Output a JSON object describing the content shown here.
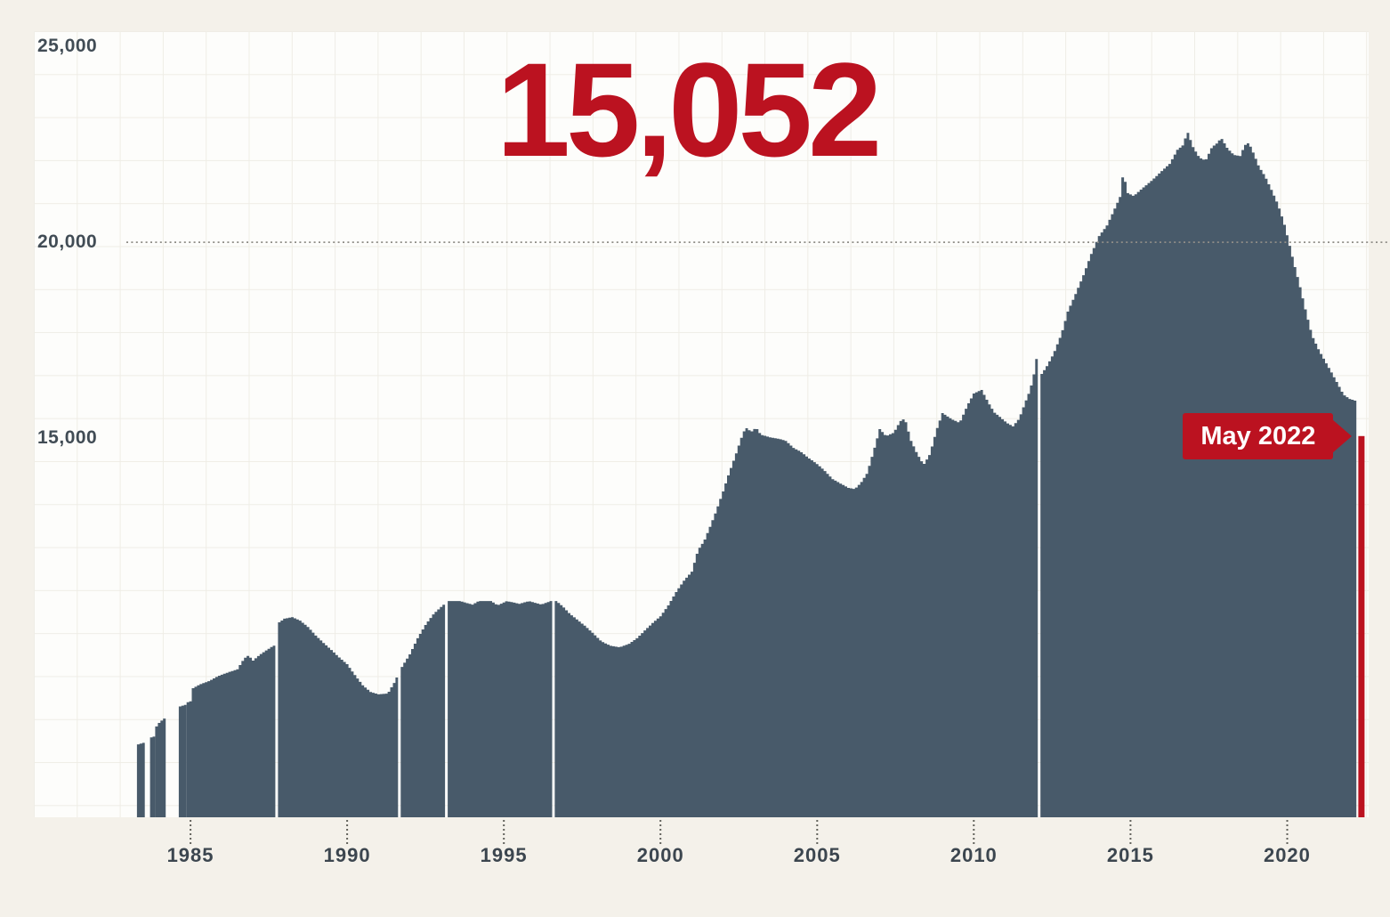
{
  "chart_data": {
    "type": "bar",
    "headline_value": "15,052",
    "title": "",
    "xlabel": "",
    "ylabel": "",
    "grid": true,
    "xlim": [
      1980.0,
      2022.6
    ],
    "ylim": [
      5320,
      25390
    ],
    "y_ticks": [
      {
        "value": 25000,
        "label": "25,000"
      },
      {
        "value": 20000,
        "label": "20,000"
      },
      {
        "value": 15000,
        "label": "15,000"
      }
    ],
    "x_ticks": [
      {
        "year": 1985,
        "label": "1985"
      },
      {
        "year": 1990,
        "label": "1990"
      },
      {
        "year": 1995,
        "label": "1995"
      },
      {
        "year": 2000,
        "label": "2000"
      },
      {
        "year": 2005,
        "label": "2005"
      },
      {
        "year": 2010,
        "label": "2010"
      },
      {
        "year": 2015,
        "label": "2015"
      },
      {
        "year": 2020,
        "label": "2020"
      }
    ],
    "threshold_line": {
      "value": 20000
    },
    "highlight": {
      "x": 2022.37,
      "value": 15052,
      "label": "May 2022"
    },
    "colors": {
      "bar": "#485a6a",
      "red": "#bb1220",
      "background": "#f4f1ea",
      "plot_background": "#fdfdfb",
      "grid": "#efede6",
      "threshold": "#8f8d87",
      "tick_dots": "#63635d"
    },
    "series": [
      {
        "name": "monthly-values",
        "segments": [
          [
            [
              1983.33,
              7180
            ],
            [
              1983.5,
              7220
            ]
          ],
          [
            [
              1983.72,
              7350
            ],
            [
              1983.82,
              7380
            ]
          ],
          [
            [
              1983.9,
              7620
            ],
            [
              1984.0,
              7730
            ],
            [
              1984.1,
              7800
            ],
            [
              1984.2,
              7860
            ]
          ],
          [
            [
              1984.7,
              8150
            ],
            [
              1984.8,
              8190
            ]
          ],
          [
            [
              1984.88,
              8240
            ],
            [
              1984.97,
              8280
            ]
          ],
          [
            [
              1985.05,
              8600
            ],
            [
              1985.3,
              8710
            ],
            [
              1985.6,
              8800
            ],
            [
              1985.9,
              8930
            ],
            [
              1986.2,
              9020
            ],
            [
              1986.5,
              9100
            ],
            [
              1986.72,
              9380
            ],
            [
              1986.85,
              9450
            ],
            [
              1987.0,
              9320
            ],
            [
              1987.2,
              9460
            ],
            [
              1987.4,
              9570
            ],
            [
              1987.65,
              9700
            ]
          ],
          [
            [
              1987.8,
              10280
            ],
            [
              1988.0,
              10390
            ],
            [
              1988.25,
              10430
            ],
            [
              1988.5,
              10340
            ],
            [
              1988.75,
              10180
            ],
            [
              1989.0,
              9960
            ],
            [
              1989.25,
              9770
            ],
            [
              1989.5,
              9590
            ],
            [
              1989.75,
              9400
            ],
            [
              1990.0,
              9230
            ],
            [
              1990.25,
              8950
            ],
            [
              1990.5,
              8690
            ],
            [
              1990.75,
              8520
            ],
            [
              1991.0,
              8460
            ],
            [
              1991.3,
              8480
            ],
            [
              1991.5,
              8750
            ],
            [
              1991.62,
              8950
            ]
          ],
          [
            [
              1991.75,
              9160
            ],
            [
              1992.0,
              9480
            ],
            [
              1992.25,
              9890
            ],
            [
              1992.5,
              10230
            ],
            [
              1992.75,
              10500
            ],
            [
              1993.0,
              10690
            ],
            [
              1993.12,
              10770
            ]
          ],
          [
            [
              1993.25,
              10840
            ],
            [
              1993.6,
              10840
            ],
            [
              1994.0,
              10750
            ],
            [
              1994.2,
              10840
            ],
            [
              1994.6,
              10840
            ],
            [
              1994.8,
              10730
            ],
            [
              1995.1,
              10840
            ],
            [
              1995.5,
              10770
            ],
            [
              1995.8,
              10840
            ],
            [
              1996.2,
              10750
            ],
            [
              1996.5,
              10840
            ]
          ],
          [
            [
              1996.68,
              10840
            ],
            [
              1996.9,
              10690
            ],
            [
              1997.1,
              10520
            ],
            [
              1997.35,
              10360
            ],
            [
              1997.6,
              10200
            ],
            [
              1997.85,
              10020
            ],
            [
              1998.1,
              9820
            ],
            [
              1998.4,
              9700
            ],
            [
              1998.7,
              9660
            ],
            [
              1999.0,
              9750
            ],
            [
              1999.25,
              9890
            ],
            [
              1999.5,
              10090
            ],
            [
              1999.75,
              10280
            ],
            [
              2000.0,
              10450
            ],
            [
              2000.25,
              10730
            ],
            [
              2000.5,
              11070
            ],
            [
              2000.75,
              11360
            ],
            [
              2001.0,
              11590
            ],
            [
              2001.2,
              12140
            ],
            [
              2001.4,
              12380
            ],
            [
              2001.6,
              12770
            ],
            [
              2001.8,
              13180
            ],
            [
              2002.0,
              13640
            ],
            [
              2002.2,
              14130
            ],
            [
              2002.4,
              14570
            ],
            [
              2002.6,
              15050
            ],
            [
              2002.72,
              15270
            ],
            [
              2002.9,
              15160
            ],
            [
              2003.05,
              15270
            ],
            [
              2003.2,
              15090
            ],
            [
              2003.5,
              15020
            ],
            [
              2003.8,
              14980
            ],
            [
              2004.0,
              14930
            ],
            [
              2004.25,
              14750
            ],
            [
              2004.5,
              14640
            ],
            [
              2004.75,
              14480
            ],
            [
              2005.0,
              14340
            ],
            [
              2005.25,
              14160
            ],
            [
              2005.5,
              13950
            ],
            [
              2005.75,
              13840
            ],
            [
              2006.0,
              13730
            ],
            [
              2006.2,
              13700
            ],
            [
              2006.4,
              13860
            ],
            [
              2006.6,
              14110
            ],
            [
              2006.8,
              14660
            ],
            [
              2007.0,
              15230
            ],
            [
              2007.2,
              15050
            ],
            [
              2007.45,
              15140
            ],
            [
              2007.65,
              15430
            ],
            [
              2007.8,
              15500
            ],
            [
              2008.0,
              14930
            ],
            [
              2008.2,
              14590
            ],
            [
              2008.4,
              14320
            ],
            [
              2008.6,
              14590
            ],
            [
              2008.8,
              15180
            ],
            [
              2009.0,
              15640
            ],
            [
              2009.3,
              15480
            ],
            [
              2009.55,
              15390
            ],
            [
              2009.8,
              15840
            ],
            [
              2010.0,
              16140
            ],
            [
              2010.25,
              16230
            ],
            [
              2010.45,
              15930
            ],
            [
              2010.65,
              15660
            ],
            [
              2010.85,
              15530
            ],
            [
              2011.05,
              15390
            ],
            [
              2011.25,
              15300
            ],
            [
              2011.45,
              15500
            ],
            [
              2011.65,
              15930
            ],
            [
              2011.8,
              16230
            ],
            [
              2011.92,
              16640
            ],
            [
              2012.0,
              17020
            ]
          ],
          [
            [
              2012.17,
              16640
            ],
            [
              2012.35,
              16860
            ],
            [
              2012.55,
              17160
            ],
            [
              2012.8,
              17660
            ],
            [
              2013.0,
              18230
            ],
            [
              2013.25,
              18680
            ],
            [
              2013.5,
              19160
            ],
            [
              2013.75,
              19700
            ],
            [
              2014.0,
              20160
            ],
            [
              2014.25,
              20430
            ],
            [
              2014.5,
              20860
            ],
            [
              2014.68,
              21180
            ],
            [
              2014.78,
              21860
            ],
            [
              2014.88,
              21270
            ],
            [
              2015.1,
              21180
            ],
            [
              2015.4,
              21390
            ],
            [
              2015.7,
              21590
            ],
            [
              2016.0,
              21820
            ],
            [
              2016.25,
              22000
            ],
            [
              2016.5,
              22360
            ],
            [
              2016.68,
              22480
            ],
            [
              2016.82,
              22820
            ],
            [
              2017.0,
              22430
            ],
            [
              2017.2,
              22160
            ],
            [
              2017.4,
              22090
            ],
            [
              2017.6,
              22430
            ],
            [
              2017.75,
              22520
            ],
            [
              2017.9,
              22660
            ],
            [
              2018.1,
              22390
            ],
            [
              2018.3,
              22230
            ],
            [
              2018.5,
              22200
            ],
            [
              2018.65,
              22480
            ],
            [
              2018.78,
              22540
            ],
            [
              2018.95,
              22230
            ],
            [
              2019.1,
              21930
            ],
            [
              2019.3,
              21680
            ],
            [
              2019.5,
              21340
            ],
            [
              2019.7,
              20980
            ],
            [
              2019.9,
              20500
            ],
            [
              2020.05,
              20020
            ],
            [
              2020.2,
              19520
            ],
            [
              2020.4,
              18910
            ],
            [
              2020.6,
              18230
            ],
            [
              2020.8,
              17610
            ],
            [
              2021.0,
              17270
            ],
            [
              2021.2,
              16980
            ],
            [
              2021.4,
              16700
            ],
            [
              2021.6,
              16410
            ],
            [
              2021.8,
              16110
            ],
            [
              2022.0,
              16000
            ],
            [
              2022.2,
              15950
            ]
          ]
        ]
      }
    ]
  }
}
